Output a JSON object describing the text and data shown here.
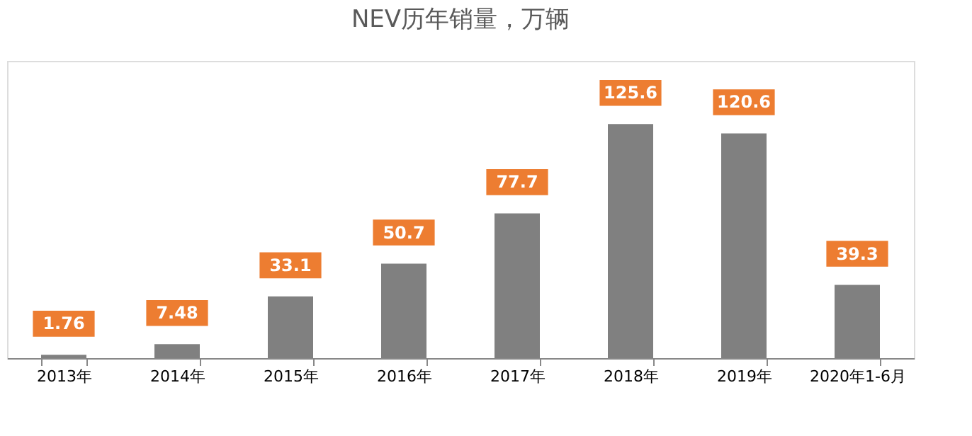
{
  "chart_data": {
    "type": "bar",
    "title": "NEV历年销量，万辆",
    "categories": [
      "2013年",
      "2014年",
      "2015年",
      "2016年",
      "2017年",
      "2018年",
      "2019年",
      "2020年1-6月"
    ],
    "values": [
      1.76,
      7.48,
      33.1,
      50.7,
      77.7,
      125.6,
      120.6,
      39.3
    ],
    "color": "#808080",
    "data_labels": true,
    "grid": false
  }
}
